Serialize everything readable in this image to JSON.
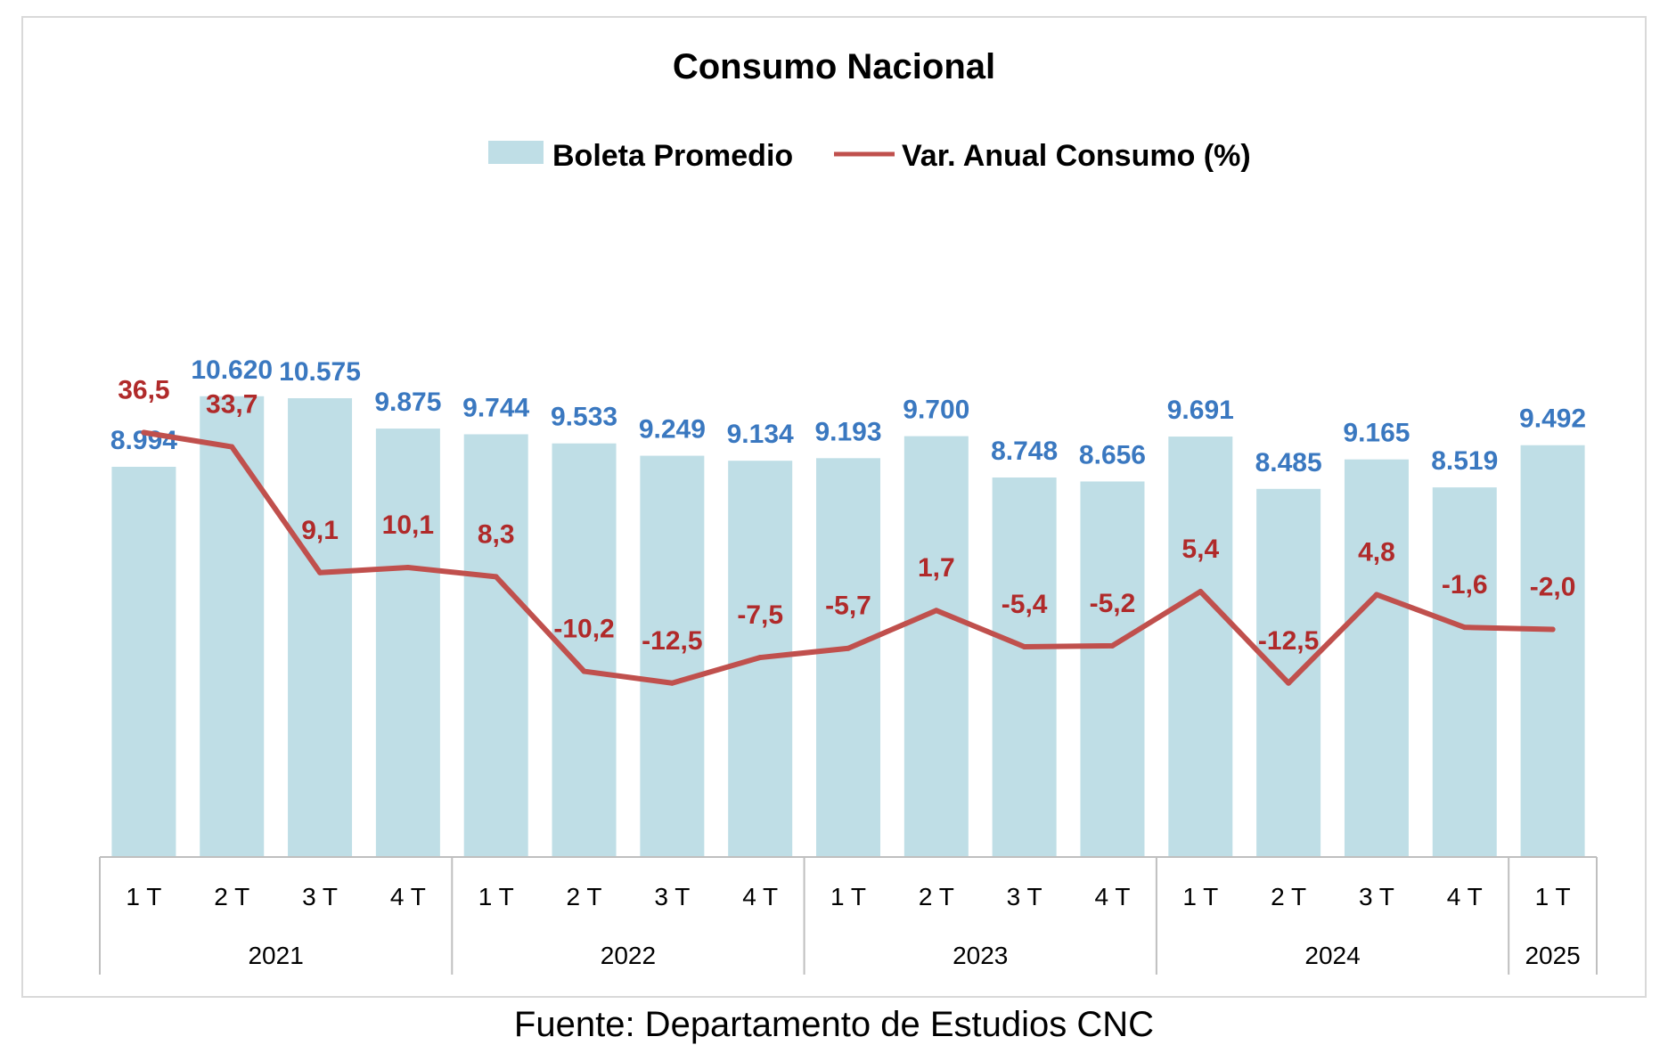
{
  "chart_data": {
    "type": "bar",
    "title": "Consumo Nacional",
    "categories": [
      "1 T",
      "2 T",
      "3 T",
      "4 T",
      "1 T",
      "2 T",
      "3 T",
      "4 T",
      "1 T",
      "2 T",
      "3 T",
      "4 T",
      "1 T",
      "2 T",
      "3 T",
      "4 T",
      "1 T"
    ],
    "year_groups": [
      {
        "label": "2021",
        "count": 4
      },
      {
        "label": "2022",
        "count": 4
      },
      {
        "label": "2023",
        "count": 4
      },
      {
        "label": "2024",
        "count": 4
      },
      {
        "label": "2025",
        "count": 1
      }
    ],
    "series": [
      {
        "name": "Boleta Promedio",
        "type": "bar",
        "color": "#bfdee6",
        "label_color": "#3a78c0",
        "values": [
          8994,
          10620,
          10575,
          9875,
          9744,
          9533,
          9249,
          9134,
          9193,
          9700,
          8748,
          8656,
          9691,
          8485,
          9165,
          8519,
          9492
        ],
        "labels": [
          "8.994",
          "10.620",
          "10.575",
          "9.875",
          "9.744",
          "9.533",
          "9.249",
          "9.134",
          "9.193",
          "9.700",
          "8.748",
          "8.656",
          "9.691",
          "8.485",
          "9.165",
          "8.519",
          "9.492"
        ]
      },
      {
        "name": "Var. Anual Consumo (%)",
        "type": "line",
        "color": "#c0504d",
        "label_color": "#b02a2a",
        "values": [
          36.5,
          33.7,
          9.1,
          10.1,
          8.3,
          -10.2,
          -12.5,
          -7.5,
          -5.7,
          1.7,
          -5.4,
          -5.2,
          5.4,
          -12.5,
          4.8,
          -1.6,
          -2.0
        ],
        "labels": [
          "36,5",
          "33,7",
          "9,1",
          "10,1",
          "8,3",
          "-10,2",
          "-12,5",
          "-7,5",
          "-5,7",
          "1,7",
          "-5,4",
          "-5,2",
          "5,4",
          "-12,5",
          "4,8",
          "-1,6",
          "-2,0"
        ]
      }
    ],
    "ylim_bar": [
      0,
      14000
    ],
    "ylim_line": [
      -30,
      60
    ],
    "legend_position": "top",
    "grid": false
  },
  "source": "Fuente: Departamento de Estudios CNC"
}
